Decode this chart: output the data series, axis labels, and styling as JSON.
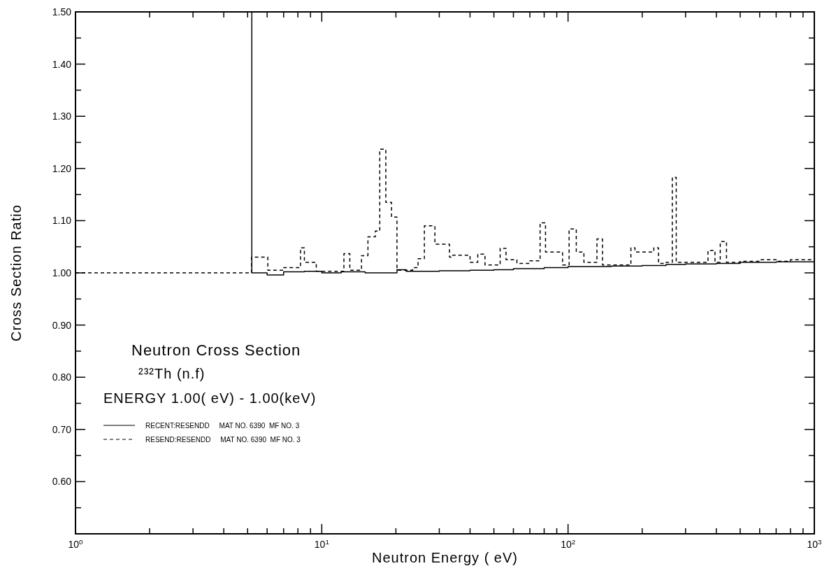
{
  "chart_data": {
    "type": "step",
    "title": "Neutron Cross Section",
    "subtitle": "²³²Th (n.f)",
    "annotations": [
      "ENERGY 1.00( eV) - 1.00(keV)"
    ],
    "xlabel": "Neutron Energy ( eV)",
    "ylabel": "Cross Section Ratio",
    "log": "x",
    "xlim": [
      1,
      1000
    ],
    "ylim": [
      0.5,
      1.5
    ],
    "xticks": [
      {
        "value": 1,
        "label": "10$^{0}$"
      },
      {
        "value": 2,
        "label": null
      },
      {
        "value": 3,
        "label": null
      },
      {
        "value": 4,
        "label": null
      },
      {
        "value": 5,
        "label": null
      },
      {
        "value": 6,
        "label": null
      },
      {
        "value": 7,
        "label": null
      },
      {
        "value": 8,
        "label": null
      },
      {
        "value": 9,
        "label": null
      },
      {
        "value": 10,
        "label": "10$^{1}$"
      },
      {
        "value": 20,
        "label": null
      },
      {
        "value": 30,
        "label": null
      },
      {
        "value": 40,
        "label": null
      },
      {
        "value": 50,
        "label": null
      },
      {
        "value": 60,
        "label": null
      },
      {
        "value": 70,
        "label": null
      },
      {
        "value": 80,
        "label": null
      },
      {
        "value": 90,
        "label": null
      },
      {
        "value": 100,
        "label": "10$^{2}$"
      },
      {
        "value": 200,
        "label": null
      },
      {
        "value": 300,
        "label": null
      },
      {
        "value": 400,
        "label": null
      },
      {
        "value": 500,
        "label": null
      },
      {
        "value": 600,
        "label": null
      },
      {
        "value": 700,
        "label": null
      },
      {
        "value": 800,
        "label": null
      },
      {
        "value": 900,
        "label": null
      },
      {
        "value": 1000,
        "label": "10$^{3}$"
      }
    ],
    "yticks": [
      {
        "value": 0.55,
        "label": null
      },
      {
        "value": 0.6,
        "label": "0.60"
      },
      {
        "value": 0.65,
        "label": null
      },
      {
        "value": 0.7,
        "label": "0.70"
      },
      {
        "value": 0.75,
        "label": null
      },
      {
        "value": 0.8,
        "label": "0.80"
      },
      {
        "value": 0.85,
        "label": null
      },
      {
        "value": 0.9,
        "label": "0.90"
      },
      {
        "value": 0.95,
        "label": null
      },
      {
        "value": 1.0,
        "label": "1.00"
      },
      {
        "value": 1.05,
        "label": null
      },
      {
        "value": 1.1,
        "label": "1.10"
      },
      {
        "value": 1.15,
        "label": null
      },
      {
        "value": 1.2,
        "label": "1.20"
      },
      {
        "value": 1.25,
        "label": null
      },
      {
        "value": 1.3,
        "label": "1.30"
      },
      {
        "value": 1.35,
        "label": null
      },
      {
        "value": 1.4,
        "label": "1.40"
      },
      {
        "value": 1.45,
        "label": null
      },
      {
        "value": 1.5,
        "label": "1.50"
      }
    ],
    "grid": false,
    "legend": "bottom left",
    "series": [
      {
        "name": "RECENT:RESENDD     MAT NO. 6390  MF NO. 3",
        "color": "#000000",
        "line_style": "solid",
        "x": [
          5.19,
          5.2,
          6.0,
          7.0,
          8.5,
          10,
          12,
          15,
          20,
          20.2,
          22,
          30,
          40,
          50,
          60,
          70,
          80,
          100,
          120,
          150,
          200,
          250,
          300,
          400,
          500,
          700,
          1000
        ],
        "values": [
          1.5,
          1.0,
          0.996,
          1.002,
          1.003,
          1.0,
          1.002,
          1.0,
          1.0,
          1.006,
          1.003,
          1.004,
          1.005,
          1.006,
          1.008,
          1.008,
          1.01,
          1.012,
          1.012,
          1.013,
          1.014,
          1.016,
          1.017,
          1.018,
          1.02,
          1.021,
          1.022
        ]
      },
      {
        "name": "RESEND:RESENDD     MAT NO. 6390  MF NO. 3",
        "color": "#000000",
        "line_style": "dashed",
        "x": [
          1,
          5.19,
          6.04,
          7.0,
          8.2,
          8.5,
          9.5,
          12.3,
          13,
          14.5,
          15.4,
          16.5,
          17.2,
          18.2,
          19.2,
          20.2,
          23.4,
          24.6,
          26.1,
          28.8,
          33,
          34,
          40,
          43,
          46,
          53,
          56,
          62,
          70,
          77,
          81,
          83,
          95,
          101,
          108,
          110,
          116,
          131,
          138,
          150,
          180,
          187,
          223,
          233,
          250,
          265,
          275,
          370,
          395,
          415,
          440,
          500,
          600,
          700,
          800,
          1000
        ],
        "values": [
          1.0,
          1.03,
          1.005,
          1.01,
          1.048,
          1.02,
          1.003,
          1.037,
          1.005,
          1.033,
          1.069,
          1.08,
          1.237,
          1.135,
          1.107,
          1.005,
          1.01,
          1.027,
          1.09,
          1.055,
          1.03,
          1.034,
          1.02,
          1.036,
          1.015,
          1.047,
          1.025,
          1.018,
          1.023,
          1.096,
          1.04,
          1.04,
          1.015,
          1.084,
          1.04,
          1.04,
          1.02,
          1.065,
          1.015,
          1.015,
          1.048,
          1.04,
          1.048,
          1.018,
          1.02,
          1.183,
          1.02,
          1.043,
          1.02,
          1.06,
          1.02,
          1.022,
          1.025,
          1.022,
          1.025,
          1.025
        ]
      }
    ]
  }
}
